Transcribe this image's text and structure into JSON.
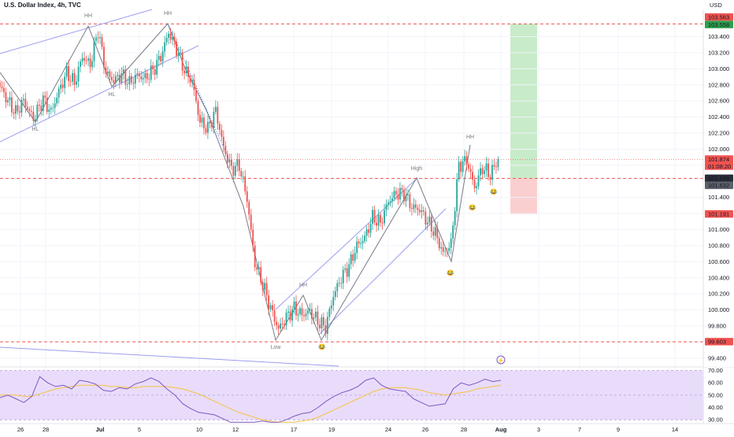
{
  "header": {
    "title": "U.S. Dollar Index, 4h, TVC",
    "currency": "USD"
  },
  "colors": {
    "up": "#26a69a",
    "down": "#ef5350",
    "channel": "#9c9cf0",
    "zigzag": "#787b86",
    "rsi": "#7e57c2",
    "rsi_ma": "#f5c242",
    "rsi_band": "#e9dcfb",
    "target": "#c8ecc9",
    "stop": "#fbcfd0",
    "level": "#ef5350"
  },
  "chart_data": [
    {
      "type": "candlestick",
      "title": "U.S. Dollar Index, 4h, TVC",
      "ylabel": "USD",
      "ylim": [
        99.3,
        103.7
      ],
      "yticks": [
        "103.400",
        "103.200",
        "103.000",
        "102.800",
        "102.600",
        "102.400",
        "102.200",
        "102.000",
        "101.800",
        "101.400",
        "101.200",
        "101.000",
        "100.800",
        "100.600",
        "100.400",
        "100.200",
        "100.000",
        "99.800",
        "99.400"
      ],
      "xticks": [
        "26",
        "28",
        "Jul",
        "5",
        "10",
        "12",
        "17",
        "19",
        "24",
        "26",
        "28",
        "Aug",
        "3",
        "7",
        "9",
        "14"
      ],
      "close_path": [
        [
          0,
          102.78
        ],
        [
          4,
          102.6
        ],
        [
          8,
          102.45
        ],
        [
          12,
          102.6
        ],
        [
          17,
          102.38
        ],
        [
          22,
          102.62
        ],
        [
          26,
          102.46
        ],
        [
          30,
          102.72
        ],
        [
          34,
          102.95
        ],
        [
          38,
          102.82
        ],
        [
          42,
          103.15
        ],
        [
          46,
          103.05
        ],
        [
          50,
          103.48
        ],
        [
          54,
          102.95
        ],
        [
          58,
          102.85
        ],
        [
          62,
          102.93
        ],
        [
          66,
          102.82
        ],
        [
          70,
          102.92
        ],
        [
          74,
          102.88
        ],
        [
          78,
          102.98
        ],
        [
          82,
          103.15
        ],
        [
          86,
          103.45
        ],
        [
          90,
          103.25
        ],
        [
          94,
          102.98
        ],
        [
          98,
          102.84
        ],
        [
          102,
          102.34
        ],
        [
          106,
          102.25
        ],
        [
          110,
          102.48
        ],
        [
          114,
          102.02
        ],
        [
          118,
          101.75
        ],
        [
          122,
          101.8
        ],
        [
          126,
          101.38
        ],
        [
          130,
          100.58
        ],
        [
          134,
          100.32
        ],
        [
          138,
          100.02
        ],
        [
          142,
          99.76
        ],
        [
          146,
          99.91
        ],
        [
          150,
          100.02
        ],
        [
          154,
          99.94
        ],
        [
          158,
          99.98
        ],
        [
          162,
          99.86
        ],
        [
          166,
          99.78
        ],
        [
          170,
          100.18
        ],
        [
          174,
          100.4
        ],
        [
          178,
          100.55
        ],
        [
          182,
          100.8
        ],
        [
          186,
          100.9
        ],
        [
          190,
          101.15
        ],
        [
          194,
          101.08
        ],
        [
          198,
          101.35
        ],
        [
          202,
          101.45
        ],
        [
          206,
          101.45
        ],
        [
          210,
          101.28
        ],
        [
          214,
          101.25
        ],
        [
          218,
          101.1
        ],
        [
          222,
          100.95
        ],
        [
          226,
          100.7
        ],
        [
          230,
          100.82
        ],
        [
          234,
          101.8
        ],
        [
          238,
          101.86
        ],
        [
          242,
          101.52
        ],
        [
          246,
          101.77
        ],
        [
          250,
          101.68
        ],
        [
          254,
          101.874
        ]
      ],
      "series": [
        {
          "name": "RSI",
          "values": [
            48,
            50,
            47,
            44,
            49,
            65,
            60,
            57,
            58,
            55,
            62,
            61,
            59,
            54,
            53,
            56,
            55,
            59,
            61,
            64,
            61,
            55,
            50,
            43,
            39,
            36,
            35,
            34,
            31,
            26,
            24,
            25,
            27,
            29,
            28,
            28,
            30,
            33,
            35,
            36,
            40,
            45,
            49,
            52,
            54,
            57,
            62,
            64,
            58,
            55,
            54,
            53,
            47,
            44,
            41,
            42,
            43,
            55,
            60,
            58,
            60,
            63,
            61,
            62
          ]
        },
        {
          "name": "RSI-based MA",
          "values": [
            50,
            50,
            50,
            49,
            49,
            51,
            53,
            55,
            56,
            57,
            58,
            58,
            58,
            58,
            57,
            57,
            56,
            56,
            57,
            57,
            57,
            57,
            56,
            55,
            53,
            51,
            48,
            45,
            42,
            39,
            36,
            34,
            32,
            30,
            29,
            28,
            28,
            28,
            29,
            30,
            32,
            35,
            38,
            41,
            44,
            47,
            50,
            53,
            55,
            56,
            56,
            56,
            55,
            54,
            52,
            51,
            50,
            51,
            52,
            53,
            55,
            56,
            57,
            58
          ]
        }
      ]
    }
  ],
  "price_labels": {
    "target_top": "103.563",
    "target": "103.558",
    "last": "101.874",
    "countdown": "01:08:20",
    "entry_a": "101.636",
    "entry_b": "101.632",
    "stop": "101.191",
    "low_level": "99.603"
  },
  "annotations": [
    {
      "text": "HH"
    },
    {
      "text": "HH"
    },
    {
      "text": "HL"
    },
    {
      "text": "HL"
    },
    {
      "text": "HH"
    },
    {
      "text": "High"
    },
    {
      "text": "Low"
    },
    {
      "text": "HH"
    }
  ],
  "rsi_axis": [
    "70.00",
    "60.00",
    "50.00",
    "40.00",
    "30.00"
  ],
  "emoji": "😂"
}
